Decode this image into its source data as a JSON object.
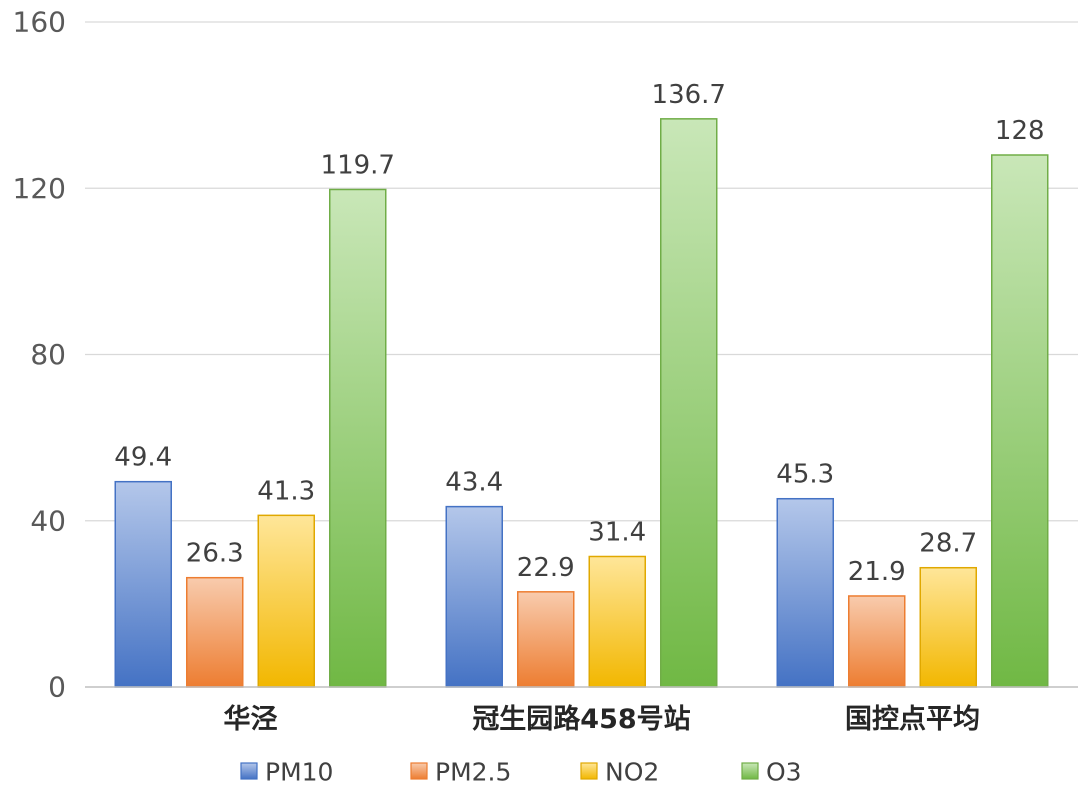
{
  "chart_data": {
    "type": "bar",
    "title": "",
    "xlabel": "",
    "ylabel": "",
    "categories": [
      "华泾",
      "冠生园路458号站",
      "国控点平均"
    ],
    "series": [
      {
        "name": "PM10",
        "values": [
          49.4,
          43.4,
          45.3
        ],
        "color_top": "#b4c7ea",
        "color_bottom": "#4472c4",
        "stroke": "#4472c4"
      },
      {
        "name": "PM2.5",
        "values": [
          26.3,
          22.9,
          21.9
        ],
        "color_top": "#f8cbad",
        "color_bottom": "#ed7d31",
        "stroke": "#ed7d31"
      },
      {
        "name": "NO2",
        "values": [
          41.3,
          31.4,
          28.7
        ],
        "color_top": "#ffe699",
        "color_bottom": "#f2b700",
        "stroke": "#e0a800"
      },
      {
        "name": "O3",
        "values": [
          119.7,
          136.7,
          128
        ],
        "color_top": "#c9e7b8",
        "color_bottom": "#70b844",
        "stroke": "#70ad47"
      }
    ],
    "data_labels": [
      [
        "49.4",
        "43.4",
        "45.3"
      ],
      [
        "26.3",
        "22.9",
        "21.9"
      ],
      [
        "41.3",
        "31.4",
        "28.7"
      ],
      [
        "119.7",
        "136.7",
        "128"
      ]
    ],
    "ylim": [
      0,
      160
    ],
    "y_ticks": [
      "0",
      "40",
      "80",
      "120",
      "160"
    ],
    "y_tick_values": [
      0,
      40,
      80,
      120,
      160
    ],
    "grid": true,
    "legend_position": "bottom"
  }
}
